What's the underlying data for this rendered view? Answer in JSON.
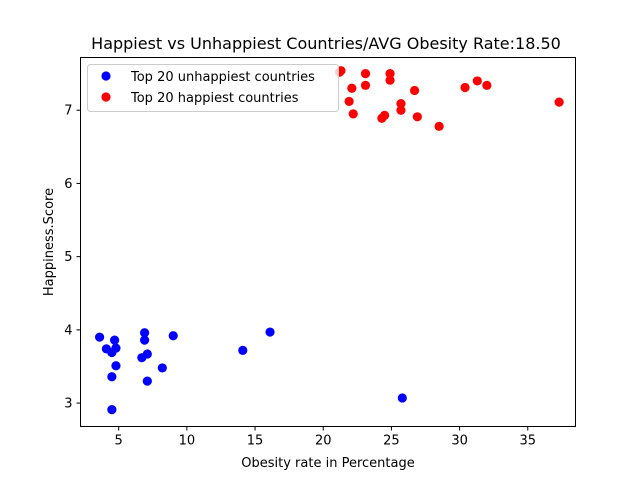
{
  "chart_data": {
    "type": "scatter",
    "title": "Happiest vs Unhappiest Countries/AVG Obesity Rate:18.50",
    "xlabel": "Obesity rate in Percentage",
    "ylabel": "Happiness.Score",
    "xlim": [
      2.2,
      38.5
    ],
    "ylim": [
      2.68,
      7.72
    ],
    "xticks": [
      5,
      10,
      15,
      20,
      25,
      30,
      35
    ],
    "yticks": [
      3,
      4,
      5,
      6,
      7
    ],
    "grid": false,
    "legend_position": "top-left",
    "series": [
      {
        "name": "Top 20 unhappiest countries",
        "color": "#0000ff",
        "points": [
          [
            3.6,
            3.9
          ],
          [
            4.1,
            3.74
          ],
          [
            4.5,
            3.69
          ],
          [
            4.5,
            3.36
          ],
          [
            4.5,
            2.91
          ],
          [
            4.7,
            3.86
          ],
          [
            4.8,
            3.75
          ],
          [
            4.8,
            3.51
          ],
          [
            6.7,
            3.62
          ],
          [
            6.9,
            3.96
          ],
          [
            6.9,
            3.86
          ],
          [
            7.1,
            3.67
          ],
          [
            7.1,
            3.3
          ],
          [
            8.2,
            3.48
          ],
          [
            9.0,
            3.92
          ],
          [
            14.1,
            3.72
          ],
          [
            16.1,
            3.97
          ],
          [
            25.8,
            3.07
          ]
        ]
      },
      {
        "name": "Top 20 happiest countries",
        "color": "#ff0000",
        "points": [
          [
            21.2,
            7.52
          ],
          [
            21.3,
            7.54
          ],
          [
            21.9,
            7.12
          ],
          [
            22.1,
            7.3
          ],
          [
            22.2,
            6.95
          ],
          [
            23.1,
            7.5
          ],
          [
            23.1,
            7.34
          ],
          [
            24.3,
            6.89
          ],
          [
            24.5,
            6.93
          ],
          [
            24.9,
            7.5
          ],
          [
            24.9,
            7.41
          ],
          [
            25.7,
            7.09
          ],
          [
            25.7,
            7.0
          ],
          [
            26.7,
            7.27
          ],
          [
            26.9,
            6.91
          ],
          [
            28.5,
            6.78
          ],
          [
            30.4,
            7.31
          ],
          [
            31.3,
            7.4
          ],
          [
            32.0,
            7.34
          ],
          [
            37.3,
            7.11
          ]
        ]
      }
    ]
  }
}
